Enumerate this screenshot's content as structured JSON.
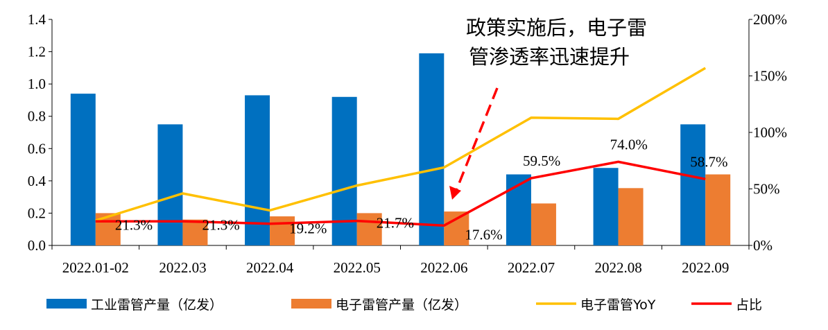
{
  "chart_data": {
    "type": "bar",
    "categories": [
      "2022.01-02",
      "2022.03",
      "2022.04",
      "2022.05",
      "2022.06",
      "2022.07",
      "2022.08",
      "2022.09"
    ],
    "series": [
      {
        "name": "工业雷管产量（亿发）",
        "kind": "bar",
        "axis": "left",
        "color": "#0070C0",
        "values": [
          0.94,
          0.75,
          0.93,
          0.92,
          1.19,
          0.44,
          0.48,
          0.75
        ]
      },
      {
        "name": "电子雷管产量（亿发）",
        "kind": "bar",
        "axis": "left",
        "color": "#ED7D31",
        "values": [
          0.2,
          0.16,
          0.18,
          0.2,
          0.21,
          0.26,
          0.355,
          0.44
        ]
      },
      {
        "name": "电子雷管YoY",
        "kind": "line",
        "axis": "right",
        "color": "#FFC000",
        "values": [
          22,
          46,
          31,
          53,
          69,
          113,
          112,
          157
        ]
      },
      {
        "name": "占比",
        "kind": "line",
        "axis": "right",
        "color": "#FF0000",
        "values": [
          21.3,
          21.3,
          19.2,
          21.7,
          17.6,
          59.5,
          74.0,
          58.7
        ],
        "labels": [
          "21.3%",
          "21.3%",
          "19.2%",
          "21.7%",
          "17.6%",
          "59.5%",
          "74.0%",
          "58.7%"
        ]
      }
    ],
    "y_left": {
      "ticks": [
        "0.0",
        "0.2",
        "0.4",
        "0.6",
        "0.8",
        "1.0",
        "1.2",
        "1.4"
      ],
      "ylim": [
        0,
        1.4
      ]
    },
    "y_right": {
      "ticks": [
        "0%",
        "50%",
        "100%",
        "150%",
        "200%"
      ],
      "ylim": [
        0,
        200
      ]
    },
    "annotation": {
      "lines": [
        "政策实施后，电子雷",
        "管渗透率迅速提升"
      ],
      "arrow_color": "#FF0000"
    },
    "legend_position": "bottom",
    "grid": false
  }
}
